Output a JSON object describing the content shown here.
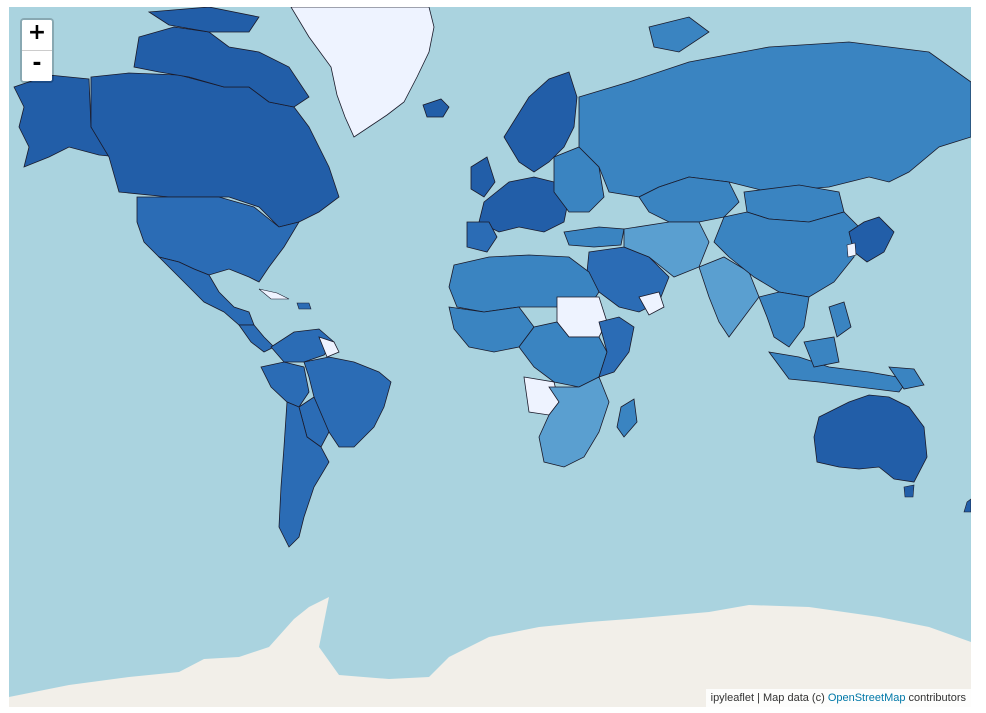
{
  "map": {
    "zoom_in_label": "+",
    "zoom_out_label": "-",
    "attribution": {
      "prefix": "ipyleaflet | Map data (c) ",
      "link": "OpenStreetMap",
      "suffix": " contributors"
    }
  },
  "colors": {
    "ocean": "#aad3df",
    "land_ice": "#f2efe9",
    "no_data": "#eef3ff",
    "high": "#225ea8",
    "medium_high": "#2b6cb5",
    "medium": "#3a84c1",
    "low": "#5a9fd0",
    "border": "#1a1a2a"
  }
}
